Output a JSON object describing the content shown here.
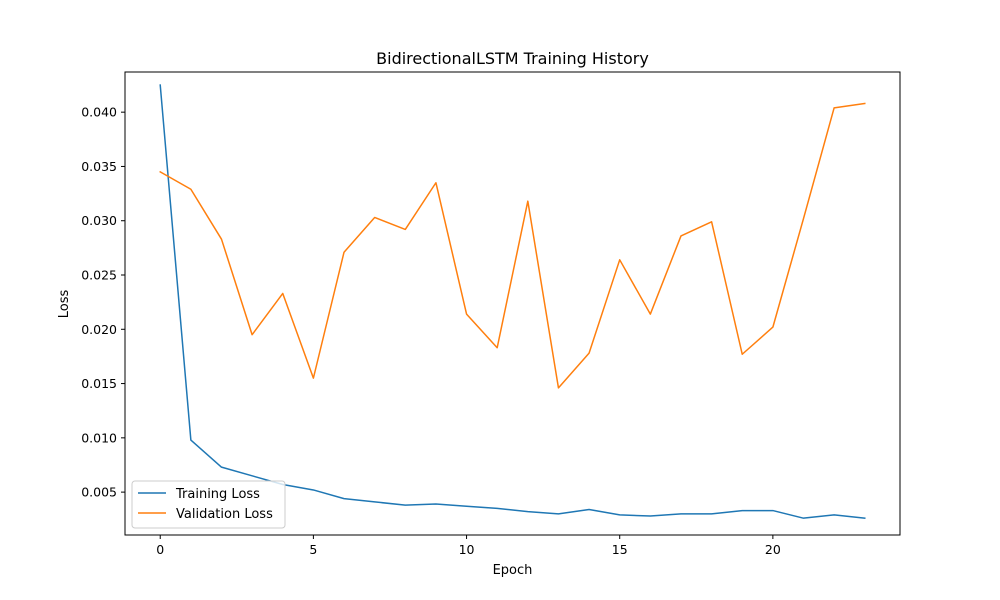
{
  "chart_data": {
    "type": "line",
    "title": "BidirectionalLSTM Training History",
    "xlabel": "Epoch",
    "ylabel": "Loss",
    "xlim": [
      -1.15,
      24.15
    ],
    "ylim": [
      0.00105,
      0.0437
    ],
    "xticks": [
      0,
      5,
      10,
      15,
      20
    ],
    "yticks": [
      0.005,
      0.01,
      0.015,
      0.02,
      0.025,
      0.03,
      0.035,
      0.04
    ],
    "ytick_labels": [
      "0.005",
      "0.010",
      "0.015",
      "0.020",
      "0.025",
      "0.030",
      "0.035",
      "0.040"
    ],
    "grid": false,
    "legend_position": "lower-left",
    "x": [
      0,
      1,
      2,
      3,
      4,
      5,
      6,
      7,
      8,
      9,
      10,
      11,
      12,
      13,
      14,
      15,
      16,
      17,
      18,
      19,
      20,
      21,
      22,
      23
    ],
    "series": [
      {
        "name": "Training Loss",
        "color": "#1f77b4",
        "values": [
          0.0425,
          0.0098,
          0.0073,
          0.0065,
          0.0057,
          0.0052,
          0.0044,
          0.0041,
          0.0038,
          0.0039,
          0.0037,
          0.0035,
          0.0032,
          0.003,
          0.0034,
          0.0029,
          0.0028,
          0.003,
          0.003,
          0.0033,
          0.0033,
          0.0026,
          0.0029,
          0.0026
        ]
      },
      {
        "name": "Validation Loss",
        "color": "#ff7f0e",
        "values": [
          0.0345,
          0.0329,
          0.0283,
          0.0195,
          0.0233,
          0.0155,
          0.0271,
          0.0303,
          0.0292,
          0.0335,
          0.0214,
          0.0183,
          0.0318,
          0.0146,
          0.0178,
          0.0264,
          0.0214,
          0.0286,
          0.0299,
          0.0177,
          0.0202,
          0.0302,
          0.0404,
          0.0408
        ]
      }
    ]
  }
}
